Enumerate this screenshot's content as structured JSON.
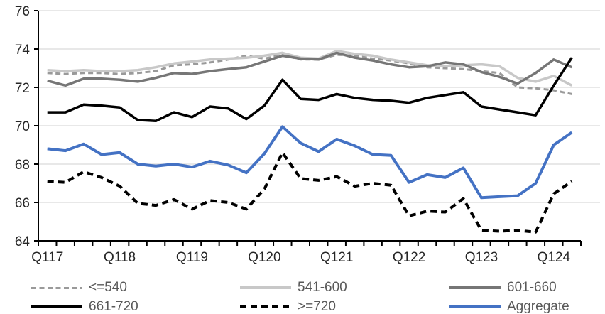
{
  "chart_data": {
    "type": "line",
    "title": "",
    "xlabel": "",
    "ylabel": "",
    "ylim": [
      64,
      76
    ],
    "y_ticks": [
      64,
      66,
      68,
      70,
      72,
      74,
      76
    ],
    "x_axis_labels": [
      "Q117",
      "Q118",
      "Q119",
      "Q120",
      "Q121",
      "Q122",
      "Q123",
      "Q124"
    ],
    "grid": true,
    "legend_position": "bottom",
    "categories": [
      "Q117",
      "Q217",
      "Q317",
      "Q417",
      "Q118",
      "Q218",
      "Q318",
      "Q418",
      "Q119",
      "Q219",
      "Q319",
      "Q419",
      "Q120",
      "Q220",
      "Q320",
      "Q420",
      "Q121",
      "Q221",
      "Q321",
      "Q421",
      "Q122",
      "Q222",
      "Q322",
      "Q422",
      "Q123",
      "Q223",
      "Q323",
      "Q423",
      "Q124",
      "Q224"
    ],
    "series": [
      {
        "name": "<=540",
        "color": "#9a9a9a",
        "line_style": "dashed",
        "width": 3,
        "dash": "7 4.5",
        "values": [
          72.75,
          72.7,
          72.75,
          72.75,
          72.7,
          72.75,
          72.85,
          73.15,
          73.2,
          73.3,
          73.45,
          73.65,
          73.5,
          73.7,
          73.45,
          73.45,
          73.7,
          73.65,
          73.5,
          73.4,
          73.25,
          73.05,
          73.0,
          72.95,
          72.85,
          72.75,
          72.0,
          71.95,
          71.85,
          71.65
        ]
      },
      {
        "name": "541-600",
        "color": "#c8c8c8",
        "line_style": "solid",
        "width": 3.5,
        "dash": "",
        "values": [
          72.9,
          72.85,
          72.9,
          72.85,
          72.85,
          72.9,
          73.05,
          73.25,
          73.35,
          73.45,
          73.5,
          73.55,
          73.65,
          73.8,
          73.55,
          73.5,
          73.9,
          73.75,
          73.65,
          73.45,
          73.3,
          73.15,
          73.1,
          73.15,
          73.2,
          73.1,
          72.5,
          72.3,
          72.6,
          72.1
        ]
      },
      {
        "name": "601-660",
        "color": "#767676",
        "line_style": "solid",
        "width": 3.5,
        "dash": "",
        "values": [
          72.35,
          72.1,
          72.45,
          72.45,
          72.4,
          72.3,
          72.5,
          72.75,
          72.7,
          72.85,
          72.95,
          73.05,
          73.35,
          73.65,
          73.5,
          73.45,
          73.8,
          73.55,
          73.4,
          73.2,
          73.05,
          73.1,
          73.3,
          73.2,
          72.8,
          72.55,
          72.2,
          72.75,
          73.45,
          73.05
        ]
      },
      {
        "name": "661-720",
        "color": "#000000",
        "line_style": "solid",
        "width": 3.5,
        "dash": "",
        "values": [
          70.7,
          70.7,
          71.1,
          71.05,
          70.95,
          70.3,
          70.25,
          70.7,
          70.45,
          71.0,
          70.9,
          70.35,
          71.05,
          72.4,
          71.4,
          71.35,
          71.65,
          71.45,
          71.35,
          71.3,
          71.2,
          71.45,
          71.6,
          71.75,
          71.0,
          70.85,
          70.7,
          70.55,
          72.1,
          73.55
        ]
      },
      {
        "name": ">=720",
        "color": "#000000",
        "line_style": "dashed",
        "width": 4,
        "dash": "9 6",
        "values": [
          67.1,
          67.05,
          67.6,
          67.3,
          66.85,
          65.95,
          65.85,
          66.15,
          65.65,
          66.1,
          66.0,
          65.65,
          66.7,
          68.6,
          67.25,
          67.15,
          67.35,
          66.85,
          67.0,
          66.9,
          65.3,
          65.55,
          65.5,
          66.2,
          64.55,
          64.5,
          64.55,
          64.45,
          66.45,
          67.1
        ]
      },
      {
        "name": "Aggregate",
        "color": "#4472c4",
        "line_style": "solid",
        "width": 4,
        "dash": "",
        "values": [
          68.8,
          68.7,
          69.05,
          68.5,
          68.6,
          68.0,
          67.9,
          68.0,
          67.85,
          68.15,
          67.95,
          67.55,
          68.55,
          69.95,
          69.1,
          68.65,
          69.3,
          68.95,
          68.5,
          68.45,
          67.05,
          67.45,
          67.3,
          67.8,
          66.25,
          66.3,
          66.35,
          67.0,
          69.0,
          69.65
        ]
      }
    ],
    "legend_rows": [
      [
        "<=540",
        "541-600",
        "601-660"
      ],
      [
        "661-720",
        ">=720",
        "Aggregate"
      ]
    ]
  },
  "colors": {
    "background": "#ffffff",
    "gridline": "#d9d9d9",
    "axis": "#000000",
    "tick_label": "#262626",
    "legend_text": "#595959"
  }
}
